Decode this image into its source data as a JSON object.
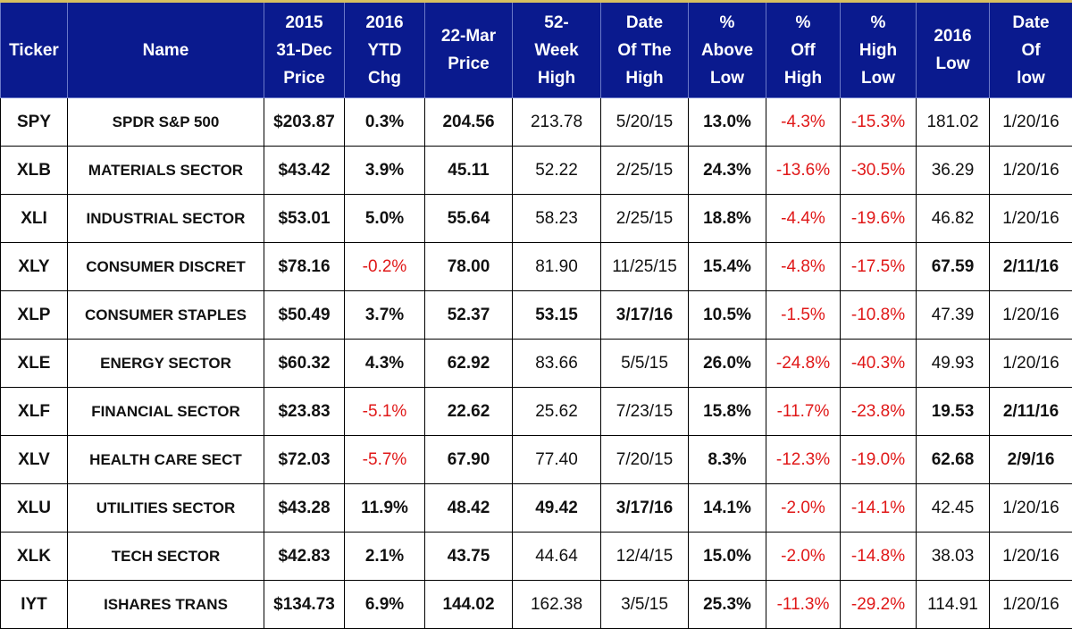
{
  "table": {
    "headers": [
      [
        "Ticker"
      ],
      [
        "Name"
      ],
      [
        "2015",
        "31-Dec",
        "Price"
      ],
      [
        "2016",
        "YTD",
        "Chg"
      ],
      [
        "22-Mar",
        "Price"
      ],
      [
        "52-",
        "Week",
        "High"
      ],
      [
        "Date",
        "Of The",
        "High"
      ],
      [
        "%",
        "Above",
        "Low"
      ],
      [
        "%",
        "Off",
        "High"
      ],
      [
        "%",
        "High",
        "Low"
      ],
      [
        "2016",
        "Low"
      ],
      [
        "Date",
        "Of",
        "low"
      ]
    ],
    "rows": [
      [
        "SPY",
        "SPDR S&P 500",
        "$203.87",
        "0.3%",
        "204.56",
        "213.78",
        "5/20/15",
        "13.0%",
        "-4.3%",
        "-15.3%",
        "181.02",
        "1/20/16"
      ],
      [
        "XLB",
        "MATERIALS SECTOR",
        "$43.42",
        "3.9%",
        "45.11",
        "52.22",
        "2/25/15",
        "24.3%",
        "-13.6%",
        "-30.5%",
        "36.29",
        "1/20/16"
      ],
      [
        "XLI",
        "INDUSTRIAL SECTOR",
        "$53.01",
        "5.0%",
        "55.64",
        "58.23",
        "2/25/15",
        "18.8%",
        "-4.4%",
        "-19.6%",
        "46.82",
        "1/20/16"
      ],
      [
        "XLY",
        "CONSUMER DISCRET",
        "$78.16",
        "-0.2%",
        "78.00",
        "81.90",
        "11/25/15",
        "15.4%",
        "-4.8%",
        "-17.5%",
        "67.59",
        "2/11/16"
      ],
      [
        "XLP",
        "CONSUMER STAPLES",
        "$50.49",
        "3.7%",
        "52.37",
        "53.15",
        "3/17/16",
        "10.5%",
        "-1.5%",
        "-10.8%",
        "47.39",
        "1/20/16"
      ],
      [
        "XLE",
        "ENERGY SECTOR",
        "$60.32",
        "4.3%",
        "62.92",
        "83.66",
        "5/5/15",
        "26.0%",
        "-24.8%",
        "-40.3%",
        "49.93",
        "1/20/16"
      ],
      [
        "XLF",
        "FINANCIAL SECTOR",
        "$23.83",
        "-5.1%",
        "22.62",
        "25.62",
        "7/23/15",
        "15.8%",
        "-11.7%",
        "-23.8%",
        "19.53",
        "2/11/16"
      ],
      [
        "XLV",
        "HEALTH CARE SECT",
        "$72.03",
        "-5.7%",
        "67.90",
        "77.40",
        "7/20/15",
        "8.3%",
        "-12.3%",
        "-19.0%",
        "62.68",
        "2/9/16"
      ],
      [
        "XLU",
        "UTILITIES SECTOR",
        "$43.28",
        "11.9%",
        "48.42",
        "49.42",
        "3/17/16",
        "14.1%",
        "-2.0%",
        "-14.1%",
        "42.45",
        "1/20/16"
      ],
      [
        "XLK",
        "TECH SECTOR",
        "$42.83",
        "2.1%",
        "43.75",
        "44.64",
        "12/4/15",
        "15.0%",
        "-2.0%",
        "-14.8%",
        "38.03",
        "1/20/16"
      ],
      [
        "IYT",
        "ISHARES TRANS",
        "$134.73",
        "6.9%",
        "144.02",
        "162.38",
        "3/5/15",
        "25.3%",
        "-11.3%",
        "-29.2%",
        "114.91",
        "1/20/16"
      ]
    ]
  }
}
